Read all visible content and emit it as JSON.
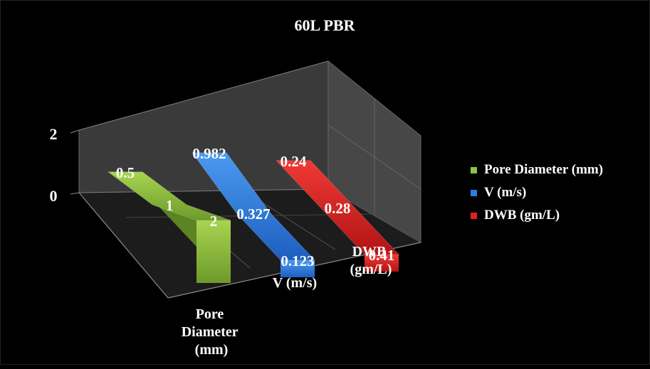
{
  "chart_data": {
    "type": "bar",
    "title": "60L PBR",
    "categories": [
      "Pore Diameter (mm)",
      "V (m/s)",
      "DWB (gm/L)"
    ],
    "y_ticks": [
      "0",
      "2"
    ],
    "ylim": [
      0,
      2
    ],
    "x_axis_labels": [
      [
        "Pore",
        "Diameter",
        "(mm)"
      ],
      [
        "V (m/s)"
      ],
      [
        "DWB",
        "(gm/L)"
      ]
    ],
    "series": [
      {
        "name": "Pore Diameter (mm)",
        "color": "#8cc63f",
        "values": [
          0.5,
          1,
          2
        ],
        "labels": [
          "0.5",
          "1",
          "2"
        ]
      },
      {
        "name": "V (m/s)",
        "color": "#2e7de0",
        "values": [
          0.982,
          0.327,
          0.123
        ],
        "labels": [
          "0.982",
          "0.327",
          "0.123"
        ]
      },
      {
        "name": "DWB (gm/L)",
        "color": "#e0201f",
        "values": [
          0.24,
          0.28,
          0.41
        ],
        "labels": [
          "0.24",
          "0.28",
          "0.41"
        ]
      }
    ],
    "legend_position": "right",
    "grid": true,
    "style": "3d-ribbon"
  }
}
